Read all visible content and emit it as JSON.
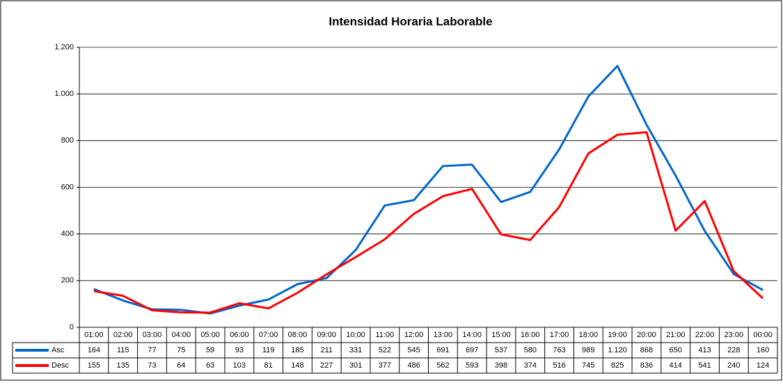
{
  "chart_data": {
    "type": "line",
    "title": "Intensidad Horaria Laborable",
    "categories": [
      "01:00",
      "02:00",
      "03:00",
      "04:00",
      "05:00",
      "06:00",
      "07:00",
      "08:00",
      "09:00",
      "10:00",
      "11:00",
      "12:00",
      "13:00",
      "14:00",
      "15:00",
      "16:00",
      "17:00",
      "18:00",
      "19:00",
      "20:00",
      "21:00",
      "22:00",
      "23:00",
      "00:00"
    ],
    "series": [
      {
        "name": "Asc",
        "color": "#0066cc",
        "values": [
          164,
          115,
          77,
          75,
          59,
          93,
          119,
          185,
          211,
          331,
          522,
          545,
          691,
          697,
          537,
          580,
          763,
          989,
          1120,
          868,
          650,
          413,
          228,
          160
        ],
        "value_labels": [
          "164",
          "115",
          "77",
          "75",
          "59",
          "93",
          "119",
          "185",
          "211",
          "331",
          "522",
          "545",
          "691",
          "697",
          "537",
          "580",
          "763",
          "989",
          "1.120",
          "868",
          "650",
          "413",
          "228",
          "160"
        ]
      },
      {
        "name": "Desc",
        "color": "#ff0000",
        "values": [
          155,
          135,
          73,
          64,
          63,
          103,
          81,
          148,
          227,
          301,
          377,
          486,
          562,
          593,
          398,
          374,
          516,
          745,
          825,
          836,
          414,
          541,
          240,
          124
        ]
      }
    ],
    "ylim": [
      0,
      1200
    ],
    "yticks": [
      0,
      200,
      400,
      600,
      800,
      {
        "value": 1000,
        "label": "1.000"
      },
      {
        "value": 1200,
        "label": "1.200"
      }
    ],
    "grid": true,
    "legend": "table"
  }
}
